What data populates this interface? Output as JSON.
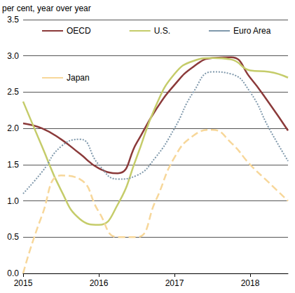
{
  "chart_data": {
    "type": "line",
    "y_label": "per cent, year over year",
    "x": [
      2015,
      2015.25,
      2015.5,
      2015.75,
      2016,
      2016.25,
      2016.5,
      2016.75,
      2017,
      2017.25,
      2017.5,
      2017.75,
      2018,
      2018.25,
      2018.5
    ],
    "series": [
      {
        "name": "OECD",
        "color": "#8b3a3a",
        "line_style": "solid",
        "values": [
          2.07,
          2.0,
          1.85,
          1.65,
          1.45,
          1.38,
          1.8,
          2.25,
          2.6,
          2.85,
          2.97,
          2.98,
          2.7,
          2.35,
          1.97
        ]
      },
      {
        "name": "U.S.",
        "color": "#c5cc6a",
        "line_style": "solid",
        "values": [
          2.37,
          1.75,
          1.15,
          0.75,
          0.67,
          0.95,
          1.6,
          2.3,
          2.75,
          2.93,
          2.97,
          2.95,
          2.8,
          2.78,
          2.7
        ]
      },
      {
        "name": "Euro Area",
        "color": "#7f98ab",
        "line_style": "dotted",
        "values": [
          1.1,
          1.4,
          1.75,
          1.85,
          1.5,
          1.3,
          1.35,
          1.6,
          2.0,
          2.5,
          2.78,
          2.75,
          2.5,
          2.0,
          1.55
        ]
      },
      {
        "name": "Japan",
        "color": "#f7d79a",
        "line_style": "dashed",
        "values": [
          0.0,
          0.8,
          1.35,
          1.3,
          0.85,
          0.5,
          0.5,
          1.0,
          1.6,
          1.9,
          1.98,
          1.8,
          1.5,
          1.25,
          1.0
        ]
      }
    ],
    "xlim": [
      2015,
      2018.5
    ],
    "xticks": [
      2015,
      2016,
      2017,
      2018
    ],
    "ylim": [
      0,
      3.5
    ],
    "yticks": [
      {
        "value": 0,
        "label": "0.0"
      },
      0.5,
      {
        "value": 1,
        "label": "1.0"
      },
      1.5,
      {
        "value": 2,
        "label": "2.0"
      },
      2.5,
      {
        "value": 3,
        "label": "3.0"
      },
      3.5
    ],
    "grid": true,
    "legend": "top"
  }
}
